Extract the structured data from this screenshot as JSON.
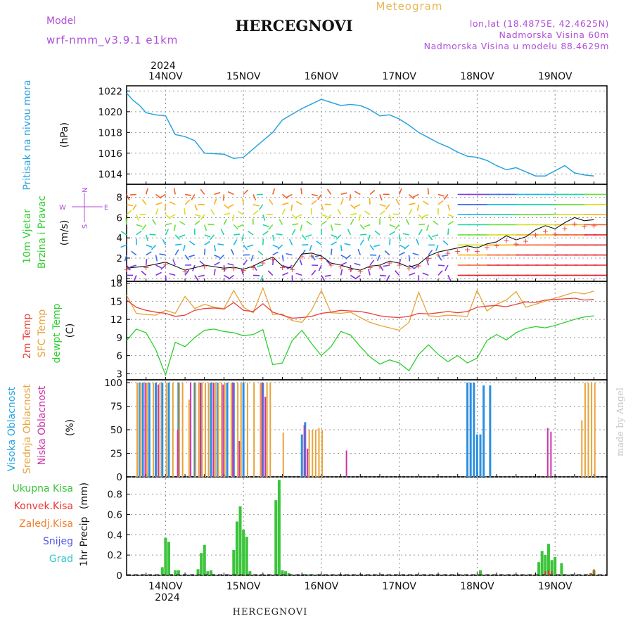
{
  "header": {
    "model_label": "Model",
    "model_name": "wrf-nmm_v3.9.1  e1km",
    "title": "HERCEGNOVI",
    "product": "Meteogram",
    "lonlat": "lon,lat (18.4875E, 42.4625N)",
    "elevation": "Nadmorska Visina 60m",
    "model_elevation": "Nadmorska Visina u modelu 88.4629m"
  },
  "footer": {
    "station": "HERCEGNOVI",
    "credit": "made by Angel"
  },
  "colors": {
    "pressure": "#29a3e0",
    "temp2m": "#e8403a",
    "sfc_temp": "#e8a33a",
    "dewpoint": "#2ecf2e",
    "cloud_high": "#2c8fe0",
    "cloud_mid": "#e8a33a",
    "cloud_low": "#cc33aa",
    "precip_total": "#3ac43a",
    "precip_conv": "#ee3333",
    "precip_frozen": "#f08030",
    "precip_snow": "#5555ee",
    "precip_hail": "#30c8c8",
    "model_text": "#b04fd8"
  },
  "chart_data": [
    {
      "type": "line",
      "panel": "pressure",
      "ylabel": "Pritisak na nivou mora",
      "unit": "(hPa)",
      "ylim": [
        1013,
        1022.5
      ],
      "yticks": [
        "1022",
        "1020",
        "1018",
        "1016",
        "1014"
      ],
      "x": [
        0,
        2,
        4,
        6,
        9,
        12,
        15,
        18,
        21,
        24,
        30,
        33,
        36,
        42,
        45,
        48,
        54,
        60,
        63,
        66,
        69,
        72,
        75,
        78,
        81,
        84,
        87,
        90,
        93,
        96,
        99,
        102,
        105,
        108,
        111,
        114,
        117,
        120,
        123,
        126,
        129,
        132,
        135,
        138,
        141,
        144
      ],
      "series": [
        {
          "name": "Pritisak na nivou mora",
          "values": [
            1021.8,
            1021.1,
            1020.6,
            1019.9,
            1019.7,
            1019.6,
            1017.8,
            1017.6,
            1017.2,
            1016.0,
            1015.9,
            1015.5,
            1015.6,
            1017.2,
            1018.0,
            1019.2,
            1020.3,
            1021.2,
            1020.9,
            1020.6,
            1020.7,
            1020.6,
            1020.2,
            1019.6,
            1019.7,
            1019.3,
            1018.7,
            1018.0,
            1017.5,
            1017.0,
            1016.6,
            1016.1,
            1015.7,
            1015.6,
            1015.3,
            1014.8,
            1014.4,
            1014.6,
            1014.2,
            1013.8,
            1013.8,
            1014.3,
            1014.8,
            1014.1,
            1013.9,
            1013.8
          ]
        }
      ]
    },
    {
      "type": "scatter",
      "panel": "wind",
      "ylabel": "10m Vjetar",
      "ylabel2": "Brzina i Pravac",
      "unit": "(m/s)",
      "compass": {
        "n": "N",
        "s": "S",
        "e": "E",
        "w": "W"
      },
      "ylim": [
        -0.3,
        9.3
      ],
      "yticks": [
        "8",
        "6",
        "4",
        "2",
        "0"
      ],
      "speed_x": [
        0,
        6,
        12,
        18,
        24,
        30,
        33,
        36,
        39,
        42,
        45,
        48,
        51,
        54,
        57,
        60,
        63,
        66,
        69,
        72,
        75,
        78,
        81,
        84,
        87,
        90,
        93,
        96,
        99,
        102,
        105,
        108,
        111,
        114,
        117,
        120,
        123,
        126,
        129,
        132,
        135,
        138,
        141,
        144
      ],
      "speed": [
        1.0,
        1.2,
        1.6,
        0.8,
        1.3,
        1.0,
        1.1,
        0.9,
        1.2,
        1.7,
        2.1,
        1.2,
        1.0,
        2.4,
        2.5,
        2.2,
        1.5,
        1.3,
        1.0,
        0.8,
        1.2,
        1.3,
        1.7,
        1.5,
        1.1,
        1.4,
        2.2,
        2.6,
        2.8,
        3.0,
        3.2,
        3.0,
        3.4,
        3.6,
        4.2,
        3.8,
        4.1,
        4.8,
        5.2,
        4.9,
        5.5,
        6.0,
        5.7,
        5.8
      ]
    },
    {
      "type": "line",
      "panel": "temperature",
      "ylabel": "2m Temp",
      "ylabel2": "SFC Temp",
      "ylabel3": "dewpt Temp",
      "unit": "(C)",
      "ylim": [
        2,
        18.3
      ],
      "yticks": [
        "18",
        "15",
        "12",
        "9",
        "6",
        "3"
      ],
      "x": [
        0,
        3,
        6,
        9,
        12,
        15,
        18,
        21,
        24,
        27,
        30,
        33,
        36,
        39,
        42,
        45,
        48,
        51,
        54,
        57,
        60,
        63,
        66,
        69,
        72,
        75,
        78,
        81,
        84,
        87,
        90,
        93,
        96,
        99,
        102,
        105,
        108,
        111,
        114,
        117,
        120,
        123,
        126,
        129,
        132,
        135,
        138,
        141,
        144
      ],
      "series": [
        {
          "name": "2m Temp",
          "values": [
            15.2,
            14.0,
            13.5,
            13.2,
            13.0,
            12.5,
            12.7,
            13.5,
            13.8,
            13.9,
            13.7,
            14.8,
            13.5,
            13.3,
            14.6,
            13.2,
            12.7,
            12.2,
            12.3,
            12.5,
            13.0,
            13.2,
            13.5,
            13.4,
            13.3,
            13.0,
            12.6,
            12.4,
            12.3,
            12.5,
            13.0,
            12.9,
            13.1,
            13.3,
            13.1,
            13.3,
            14.0,
            14.2,
            14.3,
            14.1,
            14.5,
            14.9,
            14.8,
            15.2,
            15.3,
            15.4,
            15.5,
            15.2,
            15.3
          ]
        },
        {
          "name": "SFC Temp",
          "values": [
            16.0,
            13.0,
            12.8,
            12.7,
            13.5,
            13.0,
            15.8,
            13.8,
            14.5,
            14.0,
            13.8,
            16.8,
            14.0,
            13.1,
            17.2,
            12.8,
            12.9,
            11.8,
            11.5,
            13.5,
            16.8,
            13.1,
            13.0,
            13.2,
            12.3,
            11.5,
            11.0,
            10.6,
            10.2,
            11.5,
            16.5,
            12.6,
            12.5,
            12.7,
            12.6,
            12.5,
            16.8,
            13.4,
            14.5,
            15.2,
            16.6,
            14.0,
            14.5,
            15.0,
            15.5,
            16.0,
            16.5,
            16.2,
            16.7
          ]
        },
        {
          "name": "dewpt Temp",
          "values": [
            8.5,
            10.4,
            9.8,
            7.0,
            2.8,
            8.2,
            7.5,
            9.0,
            10.2,
            10.4,
            10.0,
            9.8,
            9.3,
            9.5,
            10.3,
            4.5,
            4.8,
            8.5,
            10.2,
            8.0,
            6.0,
            7.5,
            10.0,
            9.4,
            7.5,
            5.8,
            4.6,
            5.3,
            4.8,
            3.5,
            6.2,
            7.8,
            6.2,
            5.0,
            6.0,
            4.8,
            5.6,
            8.5,
            9.5,
            8.6,
            9.8,
            10.5,
            10.8,
            10.6,
            11.0,
            11.5,
            12.0,
            12.4,
            12.6
          ]
        }
      ]
    },
    {
      "type": "bar",
      "panel": "clouds",
      "ylabel": "Visoka Oblacnost",
      "ylabel2": "Srednja Oblacnost",
      "ylabel3": "Niska Oblacnost",
      "unit": "(%)",
      "ylim": [
        0,
        103
      ],
      "yticks": [
        "100",
        "75",
        "50",
        "25",
        "0"
      ],
      "series": [
        {
          "name": "Visoka Oblacnost",
          "x": [
            4,
            5,
            7,
            9,
            11,
            13,
            16,
            21,
            23,
            26,
            28,
            31,
            33,
            36,
            42,
            54,
            55,
            105,
            106,
            107,
            108,
            109,
            110,
            112
          ],
          "values": [
            100,
            100,
            100,
            100,
            100,
            100,
            100,
            100,
            100,
            100,
            100,
            100,
            100,
            100,
            100,
            45,
            58,
            100,
            100,
            100,
            45,
            45,
            97,
            97
          ]
        },
        {
          "name": "Srednja Oblacnost",
          "x": [
            3,
            4,
            6,
            8,
            10,
            12,
            14,
            16,
            17,
            19,
            21,
            22,
            23,
            24,
            25,
            27,
            28,
            29,
            30,
            32,
            34,
            35,
            37,
            39,
            41,
            43,
            44,
            48,
            56,
            57,
            58,
            59,
            60,
            140,
            141,
            142,
            143,
            144
          ],
          "values": [
            100,
            100,
            100,
            100,
            100,
            100,
            100,
            100,
            100,
            82,
            100,
            100,
            100,
            100,
            100,
            100,
            100,
            100,
            100,
            100,
            100,
            100,
            100,
            100,
            100,
            100,
            100,
            47,
            50,
            50,
            50,
            52,
            50,
            60,
            100,
            100,
            100,
            100
          ]
        },
        {
          "name": "Niska Oblacnost",
          "x": [
            6,
            10,
            16,
            20,
            23,
            27,
            30,
            33,
            35,
            42,
            43,
            55,
            56,
            68,
            130,
            131
          ],
          "values": [
            100,
            98,
            50,
            100,
            100,
            100,
            98,
            100,
            38,
            100,
            85,
            55,
            30,
            28,
            52,
            48
          ]
        }
      ]
    },
    {
      "type": "bar",
      "panel": "precipitation",
      "ylabel": "1hr Precip",
      "unit": "(mm)",
      "ylim": [
        0,
        0.97
      ],
      "yticks": [
        "0.8",
        "0.6",
        "0.4",
        "0.2",
        "0"
      ],
      "legend": [
        "Ukupna Kisa",
        "Konvek.Kisa",
        "Zaledj.Kisa",
        "Snijeg",
        "Grad"
      ],
      "x": [
        11,
        12,
        13,
        15,
        16,
        22,
        23,
        24,
        25,
        26,
        33,
        34,
        35,
        36,
        37,
        38,
        46,
        47,
        48,
        49,
        50,
        56,
        109,
        127,
        128,
        129,
        130,
        131,
        132,
        134,
        143,
        144
      ],
      "series": [
        {
          "name": "Ukupna Kisa",
          "values": [
            0.08,
            0.37,
            0.33,
            0.05,
            0.05,
            0.06,
            0.22,
            0.3,
            0.04,
            0.05,
            0.25,
            0.53,
            0.68,
            0.45,
            0.38,
            0.04,
            0.74,
            0.94,
            0.05,
            0.04,
            0.02,
            0.01,
            0.05,
            0.13,
            0.24,
            0.2,
            0.31,
            0.15,
            0.18,
            0.12,
            0.02,
            0.05
          ]
        },
        {
          "name": "Konvek.Kisa",
          "values": [
            0,
            0,
            0,
            0,
            0,
            0,
            0,
            0,
            0,
            0,
            0,
            0,
            0,
            0,
            0,
            0,
            0,
            0,
            0,
            0,
            0,
            0,
            0,
            0,
            0,
            0.04,
            0.05,
            0.04,
            0,
            0,
            0.02,
            0.06
          ]
        }
      ],
      "xlabels": [
        "14NOV",
        "15NOV",
        "16NOV",
        "17NOV",
        "18NOV",
        "19NOV"
      ],
      "xlabels_ticks": [
        12,
        36,
        60,
        84,
        108,
        132
      ],
      "year": "2024"
    }
  ]
}
